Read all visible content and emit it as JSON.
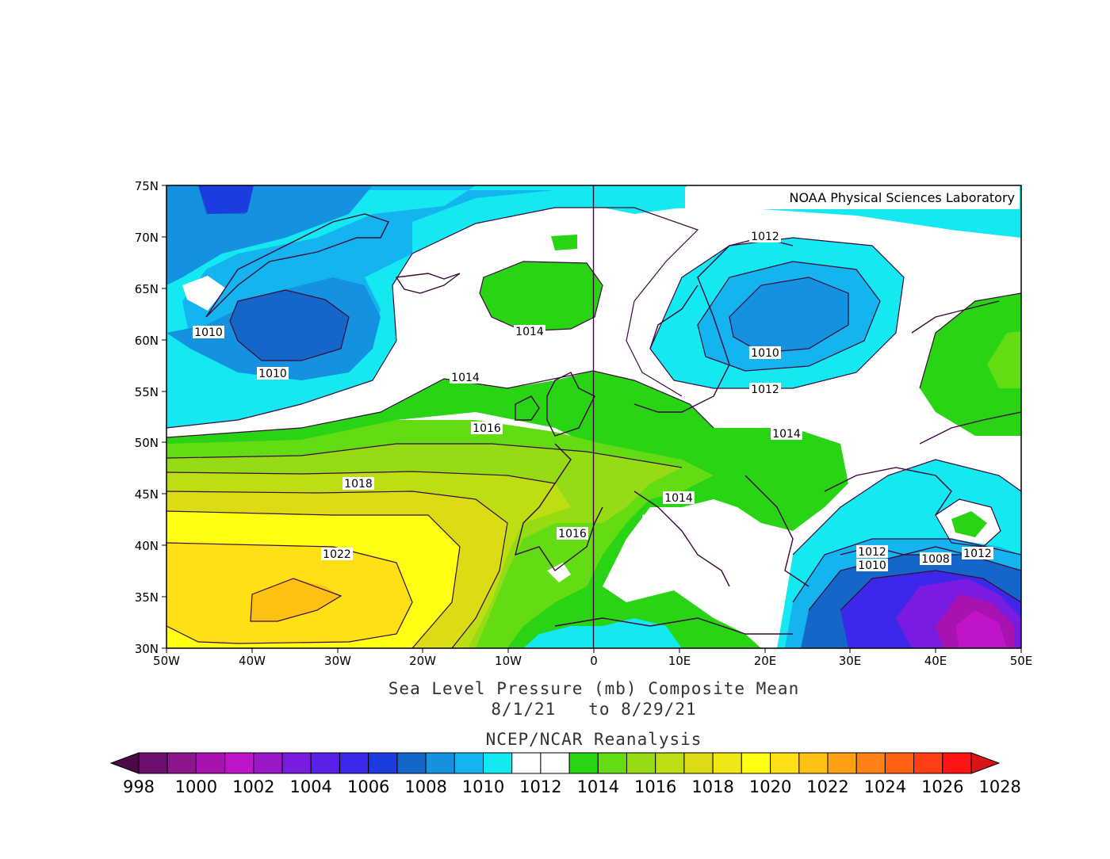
{
  "map": {
    "credit": "NOAA Physical Sciences Laboratory",
    "lat_labels": [
      "75N",
      "70N",
      "65N",
      "60N",
      "55N",
      "50N",
      "45N",
      "40N",
      "35N",
      "30N"
    ],
    "lon_labels": [
      "50W",
      "40W",
      "30W",
      "20W",
      "10W",
      "0",
      "10E",
      "20E",
      "30E",
      "40E",
      "50E"
    ],
    "title_line1": "Sea Level Pressure (mb) Composite Mean",
    "title_line2": "8/1/21   to 8/29/21",
    "source": "NCEP/NCAR Reanalysis",
    "contour_labels": [
      "1010",
      "1010",
      "1014",
      "1014",
      "1012",
      "1010",
      "1012",
      "1014",
      "1016",
      "1018",
      "1014",
      "1016",
      "1022",
      "1012",
      "1010",
      "1008",
      "1012"
    ]
  },
  "colorbar": {
    "labels": [
      "998",
      "1000",
      "1002",
      "1004",
      "1006",
      "1008",
      "1010",
      "1012",
      "1014",
      "1016",
      "1018",
      "1020",
      "1022",
      "1024",
      "1026",
      "1028"
    ],
    "colors": [
      "#4a0a4a",
      "#6e0e6e",
      "#8c148c",
      "#a812b0",
      "#c014c8",
      "#9a18c8",
      "#7a1ce0",
      "#5a20e8",
      "#3c28e8",
      "#1c3ce0",
      "#1466c8",
      "#1492e0",
      "#14b4f0",
      "#14e8f0",
      "#ffffff",
      "#ffffff",
      "#28d414",
      "#64dc14",
      "#96dc14",
      "#bede14",
      "#dcdc14",
      "#f0e614",
      "#ffff14",
      "#ffe014",
      "#ffc014",
      "#ffa014",
      "#ff8014",
      "#ff6014",
      "#ff4014",
      "#ff1414",
      "#d81414"
    ]
  }
}
